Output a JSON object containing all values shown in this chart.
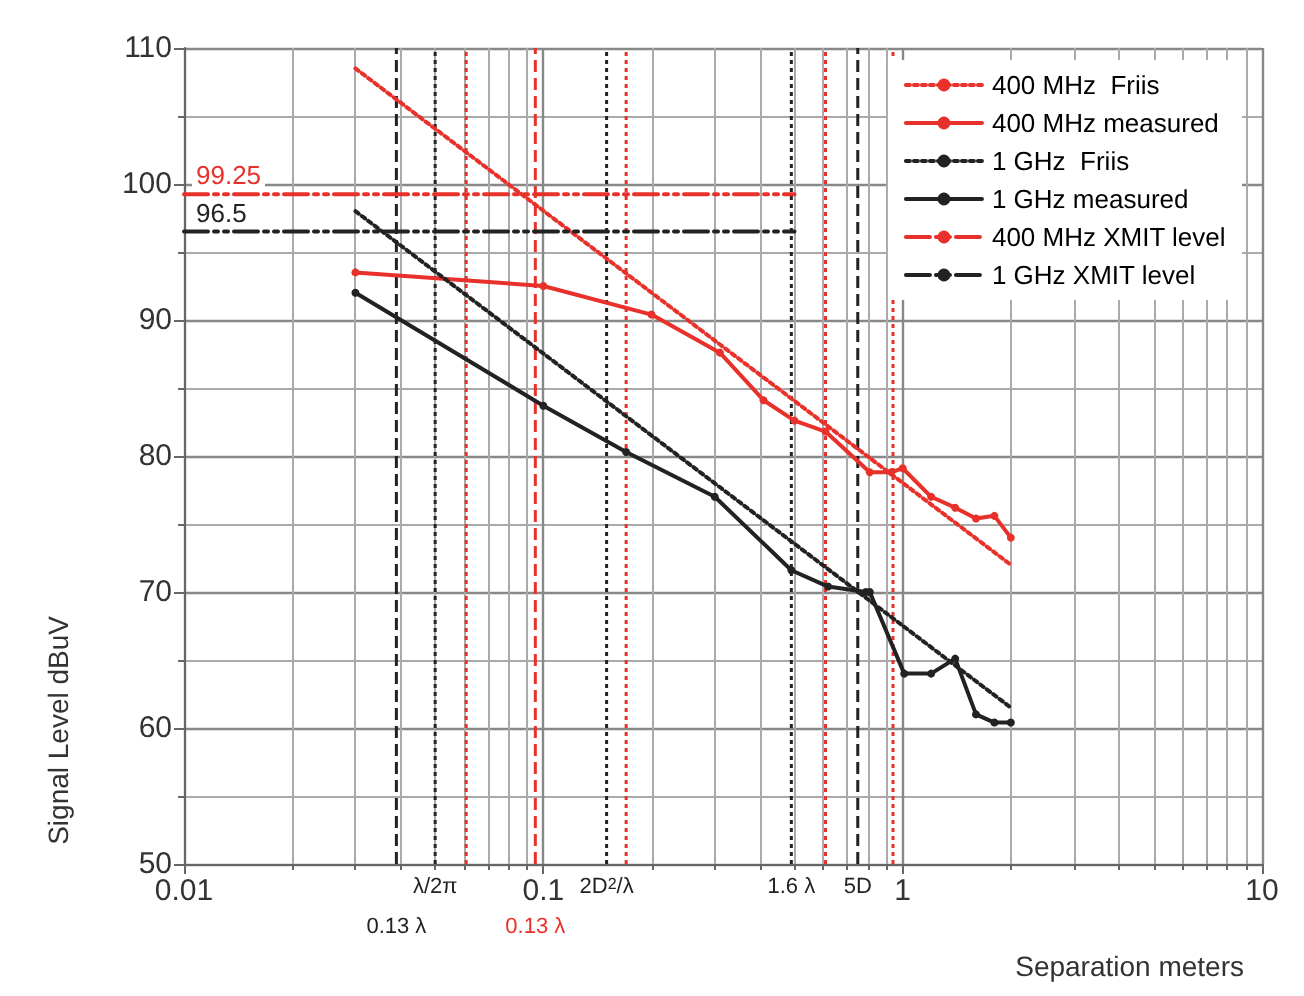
{
  "chart_data": {
    "type": "line",
    "xlabel": "Separation meters",
    "ylabel": "Signal Level dBuV",
    "log": "x",
    "xlim": [
      0.01,
      10
    ],
    "xticks": [
      0.01,
      0.1,
      1,
      10
    ],
    "ylim": [
      50,
      110
    ],
    "yticks": [
      50,
      60,
      70,
      80,
      90,
      100,
      110
    ],
    "grid": true,
    "legend": "top right",
    "series": [
      {
        "name": "400 MHz  Friis",
        "color": "#e8312a",
        "line_style": "dotted",
        "marker": "none",
        "x": [
          0.03,
          2.0
        ],
        "values": [
          108.5,
          72
        ]
      },
      {
        "name": "400 MHz measured",
        "color": "#e8312a",
        "line_style": "solid",
        "marker": "circle",
        "x": [
          0.03,
          0.1,
          0.2,
          0.31,
          0.41,
          0.5,
          0.61,
          0.81,
          0.93,
          1.0,
          1.2,
          1.4,
          1.6,
          1.8,
          2.0
        ],
        "values": [
          93.5,
          92.5,
          90.4,
          87.6,
          84.1,
          82.6,
          81.8,
          78.8,
          78.8,
          79.1,
          77,
          76.2,
          75.4,
          75.6,
          74
        ]
      },
      {
        "name": "1 GHz  Friis",
        "color": "#222222",
        "line_style": "dotted",
        "marker": "none",
        "x": [
          0.03,
          2.0
        ],
        "values": [
          98,
          61.5
        ]
      },
      {
        "name": "1 GHz measured",
        "color": "#222222",
        "line_style": "solid",
        "marker": "circle",
        "x": [
          0.03,
          0.1,
          0.17,
          0.3,
          0.49,
          0.62,
          0.79,
          0.81,
          1.01,
          1.2,
          1.4,
          1.6,
          1.8,
          2.0
        ],
        "values": [
          92,
          83.7,
          80.3,
          77,
          71.6,
          70.4,
          70,
          70,
          64,
          64,
          65.1,
          61,
          60.4,
          60.4
        ]
      },
      {
        "name": "400 MHz XMIT level",
        "color": "#e8312a",
        "line_style": "dashdot",
        "marker": "none",
        "x": [
          0.01,
          0.5
        ],
        "values": [
          99.25,
          99.25
        ],
        "value_labels": [
          "99.25",
          null
        ]
      },
      {
        "name": "1 GHz XMIT level",
        "color": "#222222",
        "line_style": "dashdot",
        "marker": "none",
        "x": [
          0.01,
          0.5
        ],
        "values": [
          96.5,
          96.5
        ],
        "value_labels": [
          "96.5",
          null
        ]
      }
    ],
    "ref_lines": [
      {
        "axis": "x",
        "value": 0.05,
        "label": "λ/2π",
        "color": "#222222",
        "line_style": "dotted"
      },
      {
        "axis": "x",
        "value": 0.15,
        "label": "2D$^{2}$/λ",
        "color": "#222222",
        "line_style": "dotted"
      },
      {
        "axis": "x",
        "value": 0.49,
        "label": "1.6 λ",
        "color": "#222222",
        "line_style": "dotted"
      },
      {
        "axis": "x",
        "value": 0.75,
        "label": "5D",
        "color": "#222222",
        "line_style": "dashed"
      },
      {
        "axis": "x",
        "value": 0.039,
        "label": "0.13 λ",
        "color": "#222222",
        "line_style": "dashed"
      },
      {
        "axis": "x",
        "value": 0.095,
        "label": "0.13 λ",
        "color": "#e8312a",
        "line_style": "dashed"
      },
      {
        "axis": "x",
        "value": 0.061,
        "label": null,
        "color": "#e8312a",
        "line_style": "dotted"
      },
      {
        "axis": "x",
        "value": 0.17,
        "label": null,
        "color": "#e8312a",
        "line_style": "dotted"
      },
      {
        "axis": "x",
        "value": 0.61,
        "label": null,
        "color": "#e8312a",
        "line_style": "dotted"
      },
      {
        "axis": "x",
        "value": 0.94,
        "label": null,
        "color": "#e8312a",
        "line_style": "dotted"
      }
    ]
  }
}
